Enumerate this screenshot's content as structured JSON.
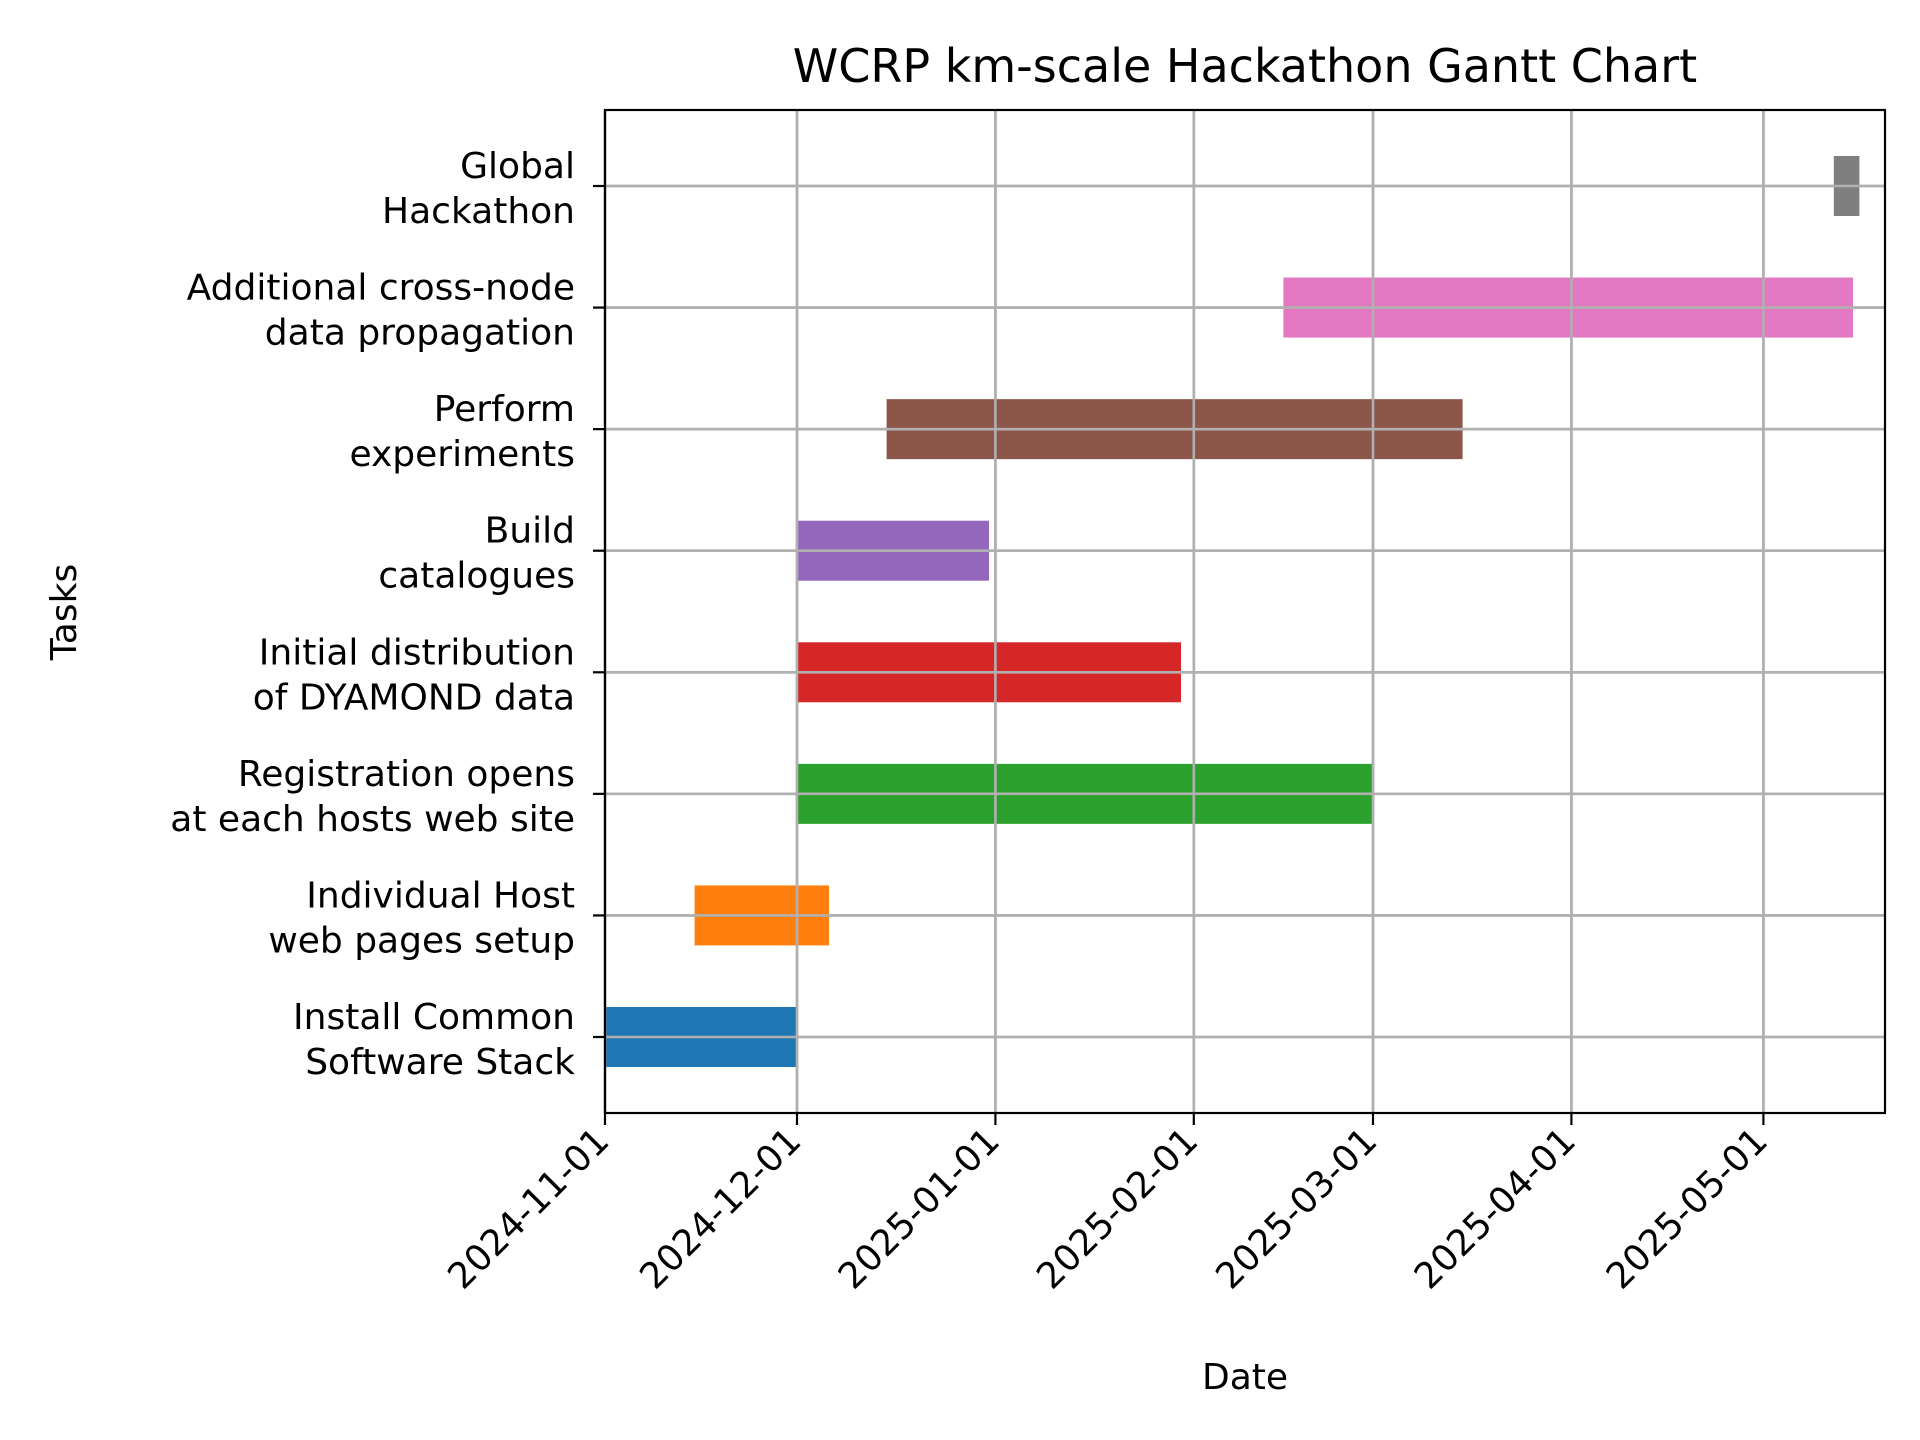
{
  "chart_data": {
    "type": "gantt",
    "title": "WCRP km-scale Hackathon Gantt Chart",
    "xlabel": "Date",
    "ylabel": "Tasks",
    "grid": true,
    "xlim": [
      "2024-11-01",
      "2025-05-20"
    ],
    "x_ticks": [
      "2024-11-01",
      "2024-12-01",
      "2025-01-01",
      "2025-02-01",
      "2025-03-01",
      "2025-04-01",
      "2025-05-01"
    ],
    "tasks": [
      {
        "label": [
          "Install Common",
          "Software Stack"
        ],
        "start": "2024-11-01",
        "end": "2024-12-01",
        "color": "#1f77b4"
      },
      {
        "label": [
          "Individual Host",
          "web pages setup"
        ],
        "start": "2024-11-15",
        "end": "2024-12-06",
        "color": "#ff7f0e"
      },
      {
        "label": [
          "Registration opens",
          "at each hosts web site"
        ],
        "start": "2024-12-01",
        "end": "2025-03-01",
        "color": "#2ca02c"
      },
      {
        "label": [
          "Initial distribution",
          "of DYAMOND data"
        ],
        "start": "2024-12-01",
        "end": "2025-01-30",
        "color": "#d62728"
      },
      {
        "label": [
          "Build",
          "catalogues"
        ],
        "start": "2024-12-01",
        "end": "2024-12-31",
        "color": "#9467bd"
      },
      {
        "label": [
          "Perform",
          "experiments"
        ],
        "start": "2024-12-15",
        "end": "2025-03-15",
        "color": "#8c564b"
      },
      {
        "label": [
          "Additional cross-node",
          "data propagation"
        ],
        "start": "2025-02-15",
        "end": "2025-05-15",
        "color": "#e377c2"
      },
      {
        "label": [
          "Global",
          "Hackathon"
        ],
        "start": "2025-05-12",
        "end": "2025-05-16",
        "color": "#7f7f7f"
      }
    ]
  }
}
